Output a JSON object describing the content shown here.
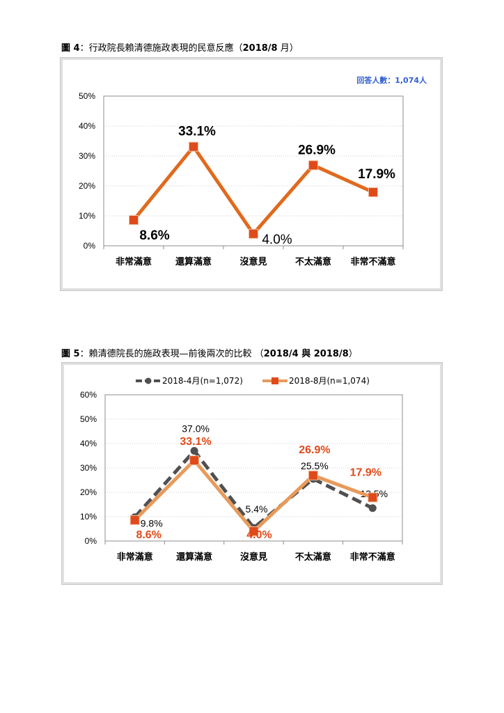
{
  "figures": [
    {
      "title_prefix": "圖 4",
      "title_sep": "：",
      "title_text": "行政院長賴清德施政表現的民意反應（",
      "title_date": "2018/8",
      "title_suffix": " 月）",
      "note": "回答人數：1,074人"
    },
    {
      "title_prefix": "圖 5",
      "title_sep": "：",
      "title_text": "賴清德院長的施政表現—前後兩次的比較 （",
      "title_date": "2018/4 與 2018/8",
      "title_suffix": "）"
    }
  ],
  "chart_data": [
    {
      "type": "line",
      "categories": [
        "非常滿意",
        "還算滿意",
        "沒意見",
        "不太滿意",
        "非常不滿意"
      ],
      "yticks": [
        "0%",
        "10%",
        "20%",
        "30%",
        "40%",
        "50%"
      ],
      "ylim": [
        0,
        50
      ],
      "grid": true,
      "series": [
        {
          "name": "",
          "values": [
            8.6,
            33.1,
            4.0,
            26.9,
            17.9
          ],
          "labels": [
            "8.6%",
            "33.1%",
            "4.0%",
            "26.9%",
            "17.9%"
          ],
          "color": "#e06a1e",
          "marker": "#e04a1a"
        }
      ]
    },
    {
      "type": "line",
      "categories": [
        "非常滿意",
        "還算滿意",
        "沒意見",
        "不太滿意",
        "非常不滿意"
      ],
      "yticks": [
        "0%",
        "10%",
        "20%",
        "30%",
        "40%",
        "50%",
        "60%"
      ],
      "ylim": [
        0,
        60
      ],
      "grid": true,
      "legend": "top",
      "series": [
        {
          "name": "2018-4月(n=1,072)",
          "values": [
            9.8,
            37.0,
            5.4,
            25.5,
            13.5
          ],
          "labels": [
            "9.8%",
            "37.0%",
            "5.4%",
            "25.5%",
            "13.5%"
          ],
          "color": "#505050",
          "marker": "#505050",
          "dashed": true
        },
        {
          "name": "2018-8月(n=1,074)",
          "values": [
            8.6,
            33.1,
            4.0,
            26.9,
            17.9
          ],
          "labels": [
            "8.6%",
            "33.1%",
            "4.0%",
            "26.9%",
            "17.9%"
          ],
          "color": "#e89a5a",
          "marker": "#e04a1a",
          "label_color": "#e04a1a"
        }
      ]
    }
  ]
}
